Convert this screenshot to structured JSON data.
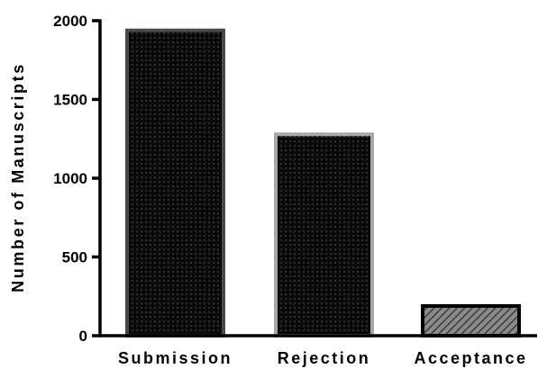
{
  "chart_data": {
    "type": "bar",
    "categories": [
      "Submission",
      "Rejection",
      "Acceptance"
    ],
    "values": [
      1950,
      1290,
      200
    ],
    "ylabel": "Number of Manuscripts",
    "xlabel": "",
    "ylim": [
      0,
      2000
    ],
    "yticks": [
      0,
      500,
      1000,
      1500,
      2000
    ],
    "grid": false,
    "bar_styles": [
      {
        "fill": "#0a0a0a",
        "outline": "#4a4a4a",
        "pattern": "dots"
      },
      {
        "fill": "#0a0a0a",
        "outline": "#a8a8a8",
        "pattern": "dots"
      },
      {
        "fill": "#7a7a7a",
        "outline": "#000000",
        "pattern": "diagonal-hatch"
      }
    ]
  }
}
